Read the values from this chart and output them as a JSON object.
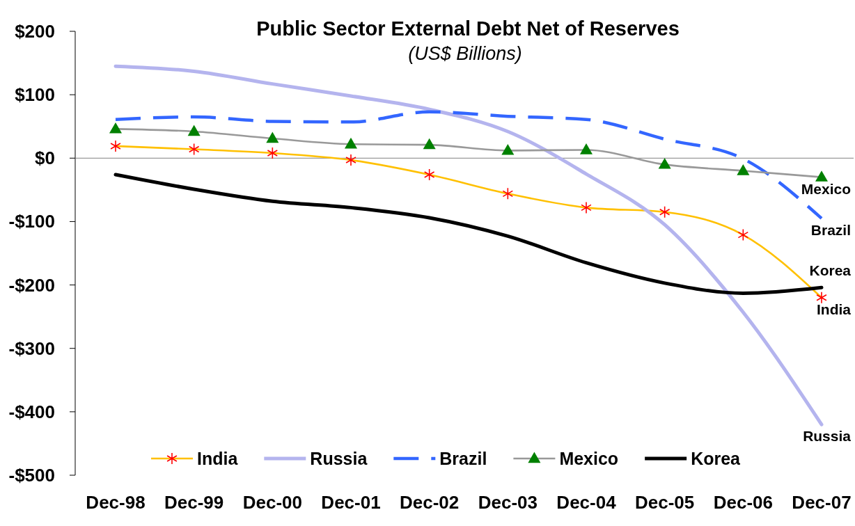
{
  "chart_data": {
    "type": "line",
    "title": "Public Sector External Debt Net of Reserves",
    "subtitle": "(US$ Billions)",
    "categories": [
      "Dec-98",
      "Dec-99",
      "Dec-00",
      "Dec-01",
      "Dec-02",
      "Dec-03",
      "Dec-04",
      "Dec-05",
      "Dec-06",
      "Dec-07"
    ],
    "series": [
      {
        "name": "India",
        "color": "#ffc000",
        "marker": "cross",
        "colors": [
          "#ff0000",
          "#ff0000",
          "#ff0000",
          "#ff0000",
          "#ff0000",
          "#ff0000",
          "#ff0000",
          "#ff0000",
          "#ff0000",
          "#ff0000"
        ],
        "values": [
          19,
          14,
          8,
          -3,
          -26,
          -56,
          -78,
          -85,
          -121,
          -220
        ]
      },
      {
        "name": "Russia",
        "color": "#b4b4ee",
        "values": [
          145,
          137,
          117,
          98,
          77,
          42,
          -25,
          -105,
          -243,
          -420
        ]
      },
      {
        "name": "Brazil",
        "color": "#3366ff",
        "line_style": "dashed",
        "values": [
          61,
          65,
          58,
          57,
          73,
          66,
          61,
          30,
          -1,
          -95
        ]
      },
      {
        "name": "Mexico",
        "color": "#999999",
        "marker": "triangle",
        "colors": [
          "#008000",
          "#008000",
          "#008000",
          "#008000",
          "#008000",
          "#008000",
          "#008000",
          "#008000",
          "#008000",
          "#008000"
        ],
        "values": [
          46,
          42,
          31,
          22,
          21,
          12,
          13,
          -10,
          -20,
          -30
        ]
      },
      {
        "name": "Korea",
        "color": "#000000",
        "values": [
          -26,
          -49,
          -68,
          -78,
          -94,
          -123,
          -165,
          -197,
          -213,
          -204
        ]
      }
    ],
    "ylim": [
      -500,
      200
    ],
    "yticks": [
      {
        "value": 200,
        "label": "$200"
      },
      {
        "value": 100,
        "label": "$100"
      },
      {
        "value": 0,
        "label": "$0"
      },
      {
        "value": -100,
        "label": "-$100"
      },
      {
        "value": -200,
        "label": "-$200"
      },
      {
        "value": -300,
        "label": "-$300"
      },
      {
        "value": -400,
        "label": "-$400"
      },
      {
        "value": -500,
        "label": "-$500"
      }
    ],
    "ref_lines": [
      {
        "axis": "y",
        "value": 0,
        "color": "#808080"
      }
    ],
    "legend": "bottom"
  }
}
